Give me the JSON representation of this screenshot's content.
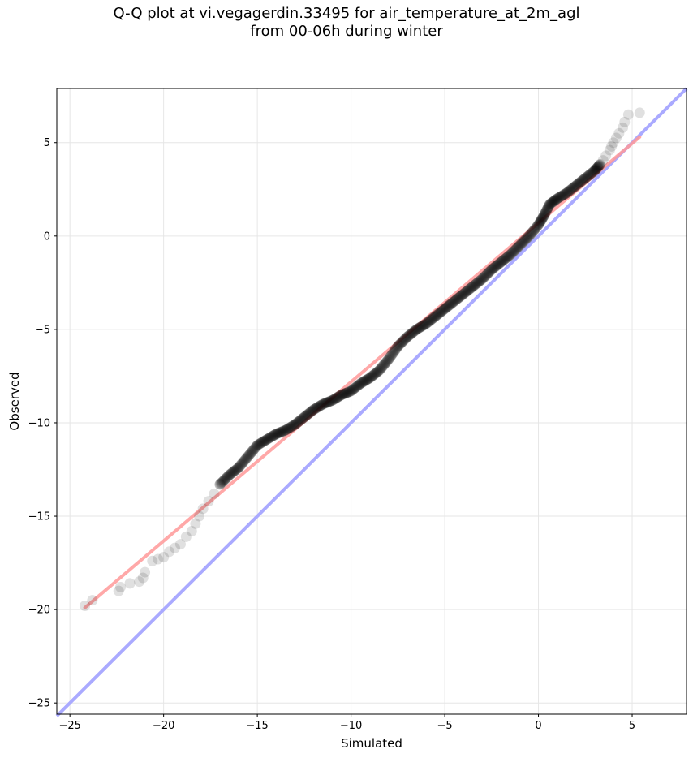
{
  "chart_data": {
    "type": "scatter",
    "title_lines": [
      "Q-Q plot at vi.vegagerdin.33495 for air_temperature_at_2m_agl",
      "from 00-06h during winter"
    ],
    "xlabel": "Simulated",
    "ylabel": "Observed",
    "xlim": [
      -25.7,
      7.9
    ],
    "ylim": [
      -25.6,
      7.9
    ],
    "xticks": [
      -25,
      -20,
      -15,
      -10,
      -5,
      0,
      5
    ],
    "yticks": [
      -25,
      -20,
      -15,
      -10,
      -5,
      0,
      5
    ],
    "tick_labels": [
      "−25",
      "−20",
      "−15",
      "−10",
      "−5",
      "0",
      "5"
    ],
    "grid": true,
    "point_color": "#000000",
    "reference_line": {
      "description": "1:1 line",
      "color": "#aaaaff",
      "points": [
        [
          -25.7,
          -25.7
        ],
        [
          7.9,
          7.9
        ]
      ]
    },
    "fit_line": {
      "color": "#ff9999",
      "points": [
        [
          -24.2,
          -19.9
        ],
        [
          5.4,
          5.3
        ]
      ]
    },
    "sparse_points": [
      [
        5.4,
        6.6
      ],
      [
        4.8,
        6.5
      ],
      [
        4.6,
        6.1
      ],
      [
        4.5,
        5.8
      ],
      [
        4.3,
        5.5
      ],
      [
        4.15,
        5.25
      ],
      [
        4.0,
        5.0
      ],
      [
        3.9,
        4.8
      ],
      [
        3.8,
        4.6
      ],
      [
        3.6,
        4.3
      ],
      [
        3.45,
        4.05
      ],
      [
        3.3,
        3.85
      ],
      [
        -17.0,
        -13.3
      ],
      [
        -17.3,
        -13.8
      ],
      [
        -17.6,
        -14.2
      ],
      [
        -17.9,
        -14.6
      ],
      [
        -18.1,
        -15.0
      ],
      [
        -18.3,
        -15.4
      ],
      [
        -18.5,
        -15.8
      ],
      [
        -18.8,
        -16.1
      ],
      [
        -19.1,
        -16.5
      ],
      [
        -19.4,
        -16.7
      ],
      [
        -19.7,
        -16.9
      ],
      [
        -20.0,
        -17.2
      ],
      [
        -20.3,
        -17.3
      ],
      [
        -20.6,
        -17.4
      ],
      [
        -21.0,
        -18.0
      ],
      [
        -21.1,
        -18.3
      ],
      [
        -21.3,
        -18.5
      ],
      [
        -21.8,
        -18.6
      ],
      [
        -22.4,
        -19.0
      ],
      [
        -22.3,
        -18.8
      ],
      [
        -23.8,
        -19.5
      ],
      [
        -24.2,
        -19.8
      ]
    ],
    "dense_curve": [
      [
        -17.0,
        -13.3
      ],
      [
        -16.5,
        -12.8
      ],
      [
        -16.0,
        -12.4
      ],
      [
        -15.5,
        -11.8
      ],
      [
        -15.0,
        -11.2
      ],
      [
        -14.5,
        -10.9
      ],
      [
        -14.0,
        -10.6
      ],
      [
        -13.5,
        -10.4
      ],
      [
        -13.0,
        -10.1
      ],
      [
        -12.5,
        -9.7
      ],
      [
        -12.0,
        -9.3
      ],
      [
        -11.5,
        -9.0
      ],
      [
        -11.0,
        -8.8
      ],
      [
        -10.5,
        -8.5
      ],
      [
        -10.0,
        -8.3
      ],
      [
        -9.5,
        -7.9
      ],
      [
        -9.0,
        -7.6
      ],
      [
        -8.5,
        -7.2
      ],
      [
        -8.0,
        -6.6
      ],
      [
        -7.5,
        -5.9
      ],
      [
        -7.0,
        -5.4
      ],
      [
        -6.5,
        -5.0
      ],
      [
        -6.0,
        -4.7
      ],
      [
        -5.5,
        -4.3
      ],
      [
        -5.0,
        -3.9
      ],
      [
        -4.5,
        -3.5
      ],
      [
        -4.0,
        -3.1
      ],
      [
        -3.5,
        -2.7
      ],
      [
        -3.0,
        -2.3
      ],
      [
        -2.5,
        -1.8
      ],
      [
        -2.0,
        -1.4
      ],
      [
        -1.5,
        -1.0
      ],
      [
        -1.0,
        -0.5
      ],
      [
        -0.5,
        0.0
      ],
      [
        0.0,
        0.6
      ],
      [
        0.3,
        1.1
      ],
      [
        0.6,
        1.7
      ],
      [
        1.0,
        2.0
      ],
      [
        1.5,
        2.3
      ],
      [
        2.0,
        2.7
      ],
      [
        2.5,
        3.1
      ],
      [
        3.0,
        3.5
      ],
      [
        3.3,
        3.85
      ]
    ]
  }
}
